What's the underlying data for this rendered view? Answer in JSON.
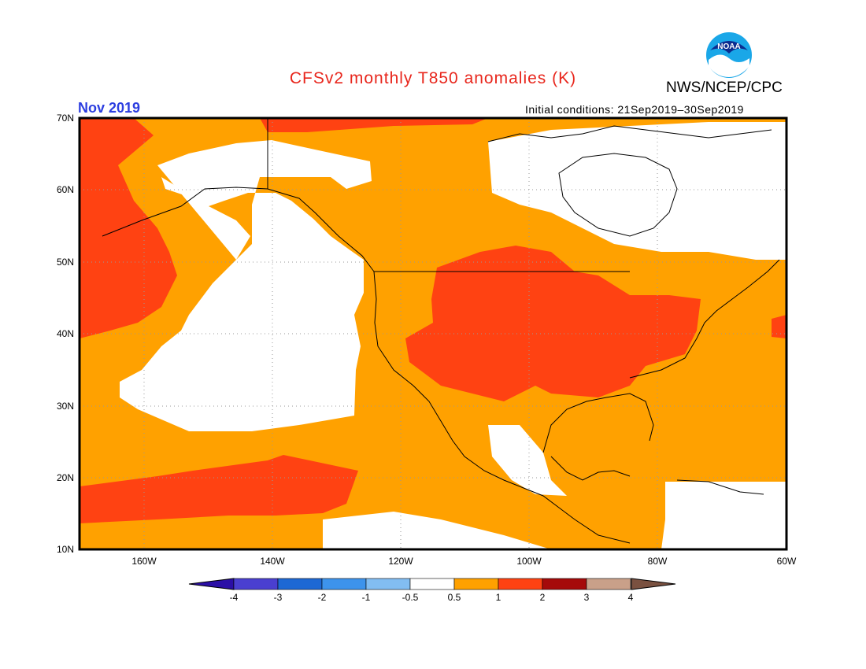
{
  "header": {
    "title": "CFSv2 monthly T850 anomalies (K)",
    "agency": "NWS/NCEP/CPC",
    "period": "Nov 2019",
    "initial_conditions": "Initial conditions: 21Sep2019–30Sep2019"
  },
  "colors": {
    "title": "#e8261c",
    "period": "#2c3ee0",
    "anom_05_1": "#ffa100",
    "anom_1_2": "#ff4212",
    "anom_2_3": "#a50a0a",
    "background": "#ffffff"
  },
  "map": {
    "lat_labels": [
      "70N",
      "60N",
      "50N",
      "40N",
      "30N",
      "20N",
      "10N"
    ],
    "lon_labels": [
      "160W",
      "140W",
      "120W",
      "100W",
      "80W",
      "60W"
    ],
    "extent": {
      "lon_min": -170,
      "lon_max": -60,
      "lat_min": 10,
      "lat_max": 70
    },
    "fill_field": "T850 anomaly (K)"
  },
  "colorbar": {
    "labels": [
      "-4",
      "-3",
      "-2",
      "-1",
      "-0.5",
      "0.5",
      "1",
      "2",
      "3",
      "4"
    ],
    "colors": [
      "#2b0fa6",
      "#4a3fd0",
      "#1d68d4",
      "#3d93ec",
      "#82bdf2",
      "#ffffff",
      "#ffa100",
      "#ff4212",
      "#a50a0a",
      "#c9a089",
      "#7a5140"
    ]
  },
  "logo": {
    "name": "NOAA"
  }
}
